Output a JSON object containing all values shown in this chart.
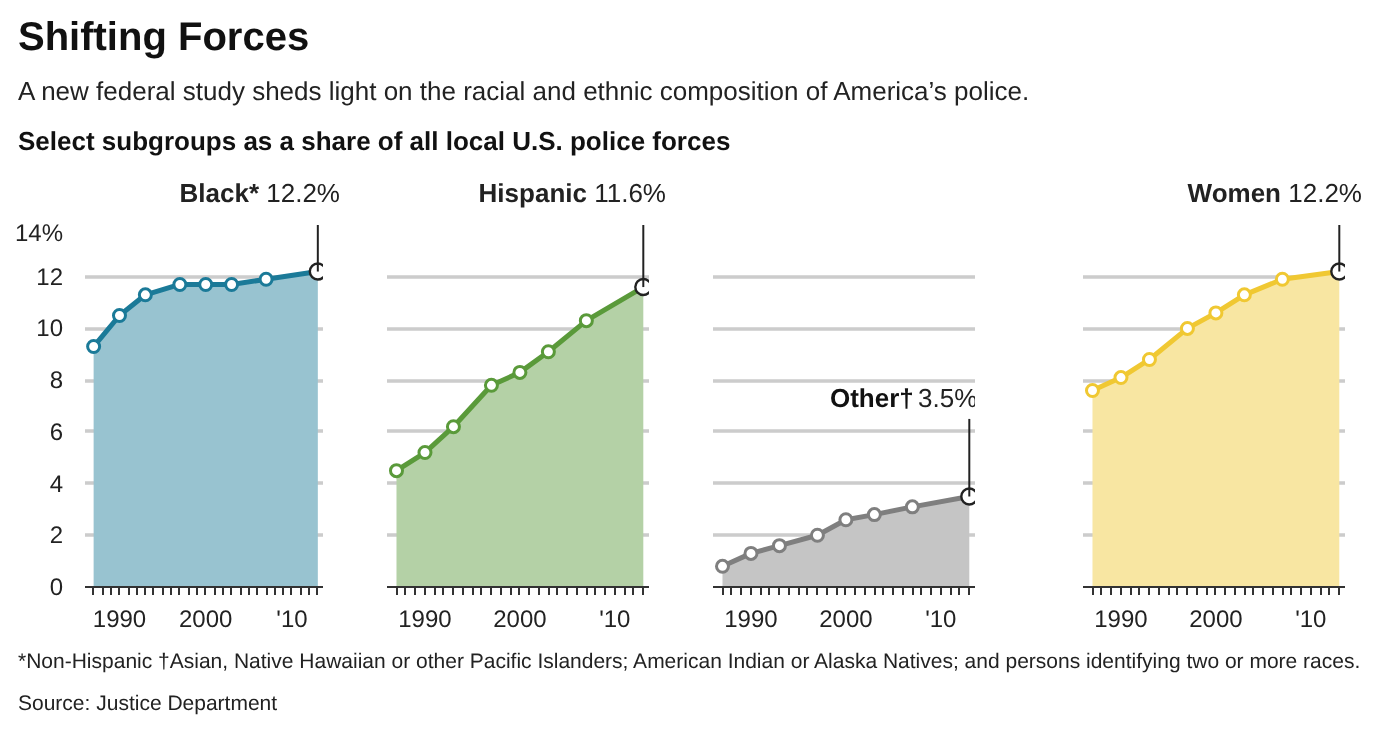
{
  "chart_data": [
    {
      "type": "area",
      "title": "Shifting Forces",
      "subtitle": "A new federal study sheds light on the racial and ethnic composition of America’s police.",
      "annotations": [
        "Select subgroups as a share of all local U.S. police forces",
        "*Non-Hispanic †Asian, Native Hawaiian or other Pacific Islanders; American Indian or Alaska Natives; and persons identifying two or more races.",
        "Source: Justice Department"
      ],
      "x": [
        1987,
        1990,
        1993,
        1997,
        2000,
        2003,
        2007,
        2013
      ],
      "series": [
        {
          "name": "Black*",
          "color": "#1b7a98",
          "values": [
            9.3,
            10.5,
            11.3,
            11.7,
            11.7,
            11.7,
            11.9,
            12.2
          ],
          "value_labels": [
            null,
            null,
            null,
            null,
            null,
            null,
            null,
            "12.2%"
          ]
        }
      ],
      "xlim": [
        1986,
        2013.6
      ],
      "xticks": [
        {
          "value": 1987,
          "label": null
        },
        {
          "value": 1988,
          "label": null
        },
        {
          "value": 1989,
          "label": null
        },
        1990,
        {
          "value": 1991,
          "label": null
        },
        {
          "value": 1992,
          "label": null
        },
        {
          "value": 1993,
          "label": null
        },
        {
          "value": 1994,
          "label": null
        },
        {
          "value": 1995,
          "label": null
        },
        {
          "value": 1996,
          "label": null
        },
        {
          "value": 1997,
          "label": null
        },
        {
          "value": 1998,
          "label": null
        },
        {
          "value": 1999,
          "label": null
        },
        2000,
        {
          "value": 2001,
          "label": null
        },
        {
          "value": 2002,
          "label": null
        },
        {
          "value": 2003,
          "label": null
        },
        {
          "value": 2004,
          "label": null
        },
        {
          "value": 2005,
          "label": null
        },
        {
          "value": 2006,
          "label": null
        },
        {
          "value": 2007,
          "label": null
        },
        {
          "value": 2008,
          "label": null
        },
        {
          "value": 2009,
          "label": null
        },
        {
          "value": 2010,
          "label": "'10"
        },
        {
          "value": 2011,
          "label": null
        },
        {
          "value": 2012,
          "label": null
        },
        {
          "value": 2013,
          "label": null
        }
      ],
      "ylim": [
        0,
        14
      ],
      "yticks": [
        0,
        2,
        4,
        6,
        8,
        10,
        12,
        {
          "value": 14,
          "label": "14%"
        }
      ],
      "grid": "y",
      "marker": "circle"
    },
    {
      "type": "area",
      "x": [
        1987,
        1990,
        1993,
        1997,
        2000,
        2003,
        2007,
        2013
      ],
      "series": [
        {
          "name": "Hispanic",
          "color": "#5a9a3a",
          "values": [
            4.5,
            5.2,
            6.2,
            7.8,
            8.3,
            9.1,
            10.3,
            11.6
          ],
          "value_labels": [
            null,
            null,
            null,
            null,
            null,
            null,
            null,
            "11.6%"
          ]
        }
      ],
      "xlim": [
        1986,
        2013.6
      ],
      "xticks": [
        {
          "value": 1987,
          "label": null
        },
        {
          "value": 1988,
          "label": null
        },
        {
          "value": 1989,
          "label": null
        },
        1990,
        {
          "value": 1991,
          "label": null
        },
        {
          "value": 1992,
          "label": null
        },
        {
          "value": 1993,
          "label": null
        },
        {
          "value": 1994,
          "label": null
        },
        {
          "value": 1995,
          "label": null
        },
        {
          "value": 1996,
          "label": null
        },
        {
          "value": 1997,
          "label": null
        },
        {
          "value": 1998,
          "label": null
        },
        {
          "value": 1999,
          "label": null
        },
        2000,
        {
          "value": 2001,
          "label": null
        },
        {
          "value": 2002,
          "label": null
        },
        {
          "value": 2003,
          "label": null
        },
        {
          "value": 2004,
          "label": null
        },
        {
          "value": 2005,
          "label": null
        },
        {
          "value": 2006,
          "label": null
        },
        {
          "value": 2007,
          "label": null
        },
        {
          "value": 2008,
          "label": null
        },
        {
          "value": 2009,
          "label": null
        },
        {
          "value": 2010,
          "label": "'10"
        },
        {
          "value": 2011,
          "label": null
        },
        {
          "value": 2012,
          "label": null
        },
        {
          "value": 2013,
          "label": null
        }
      ],
      "ylim": [
        0,
        14
      ],
      "yticks": [
        0,
        2,
        4,
        6,
        8,
        10,
        12,
        14
      ],
      "tick_labels": "x",
      "grid": "y",
      "marker": "circle"
    },
    {
      "type": "area",
      "x": [
        1987,
        1990,
        1993,
        1997,
        2000,
        2003,
        2007,
        2013
      ],
      "series": [
        {
          "name": "Other†",
          "color": "#7f7f7f",
          "values": [
            0.8,
            1.3,
            1.6,
            2.0,
            2.6,
            2.8,
            3.1,
            3.5
          ],
          "value_labels": [
            null,
            null,
            null,
            null,
            null,
            null,
            null,
            "3.5%"
          ]
        }
      ],
      "xlim": [
        1986,
        2013.6
      ],
      "xticks": [
        {
          "value": 1987,
          "label": null
        },
        {
          "value": 1988,
          "label": null
        },
        {
          "value": 1989,
          "label": null
        },
        1990,
        {
          "value": 1991,
          "label": null
        },
        {
          "value": 1992,
          "label": null
        },
        {
          "value": 1993,
          "label": null
        },
        {
          "value": 1994,
          "label": null
        },
        {
          "value": 1995,
          "label": null
        },
        {
          "value": 1996,
          "label": null
        },
        {
          "value": 1997,
          "label": null
        },
        {
          "value": 1998,
          "label": null
        },
        {
          "value": 1999,
          "label": null
        },
        2000,
        {
          "value": 2001,
          "label": null
        },
        {
          "value": 2002,
          "label": null
        },
        {
          "value": 2003,
          "label": null
        },
        {
          "value": 2004,
          "label": null
        },
        {
          "value": 2005,
          "label": null
        },
        {
          "value": 2006,
          "label": null
        },
        {
          "value": 2007,
          "label": null
        },
        {
          "value": 2008,
          "label": null
        },
        {
          "value": 2009,
          "label": null
        },
        {
          "value": 2010,
          "label": "'10"
        },
        {
          "value": 2011,
          "label": null
        },
        {
          "value": 2012,
          "label": null
        },
        {
          "value": 2013,
          "label": null
        }
      ],
      "ylim": [
        0,
        14
      ],
      "yticks": [
        0,
        2,
        4,
        6,
        8,
        10,
        12,
        14
      ],
      "tick_labels": "x",
      "grid": "y",
      "marker": "circle"
    },
    {
      "type": "area",
      "x": [
        1987,
        1990,
        1993,
        1997,
        2000,
        2003,
        2007,
        2013
      ],
      "series": [
        {
          "name": "Women",
          "color": "#f0c832",
          "values": [
            7.6,
            8.1,
            8.8,
            10.0,
            10.6,
            11.3,
            11.9,
            12.2
          ],
          "value_labels": [
            null,
            null,
            null,
            null,
            null,
            null,
            null,
            "12.2%"
          ]
        }
      ],
      "xlim": [
        1986,
        2013.6
      ],
      "xticks": [
        {
          "value": 1987,
          "label": null
        },
        {
          "value": 1988,
          "label": null
        },
        {
          "value": 1989,
          "label": null
        },
        1990,
        {
          "value": 1991,
          "label": null
        },
        {
          "value": 1992,
          "label": null
        },
        {
          "value": 1993,
          "label": null
        },
        {
          "value": 1994,
          "label": null
        },
        {
          "value": 1995,
          "label": null
        },
        {
          "value": 1996,
          "label": null
        },
        {
          "value": 1997,
          "label": null
        },
        {
          "value": 1998,
          "label": null
        },
        {
          "value": 1999,
          "label": null
        },
        2000,
        {
          "value": 2001,
          "label": null
        },
        {
          "value": 2002,
          "label": null
        },
        {
          "value": 2003,
          "label": null
        },
        {
          "value": 2004,
          "label": null
        },
        {
          "value": 2005,
          "label": null
        },
        {
          "value": 2006,
          "label": null
        },
        {
          "value": 2007,
          "label": null
        },
        {
          "value": 2008,
          "label": null
        },
        {
          "value": 2009,
          "label": null
        },
        {
          "value": 2010,
          "label": "'10"
        },
        {
          "value": 2011,
          "label": null
        },
        {
          "value": 2012,
          "label": null
        },
        {
          "value": 2013,
          "label": null
        }
      ],
      "ylim": [
        0,
        14
      ],
      "yticks": [
        0,
        2,
        4,
        6,
        8,
        10,
        12,
        14
      ],
      "tick_labels": "x",
      "grid": "y",
      "marker": "circle"
    }
  ]
}
